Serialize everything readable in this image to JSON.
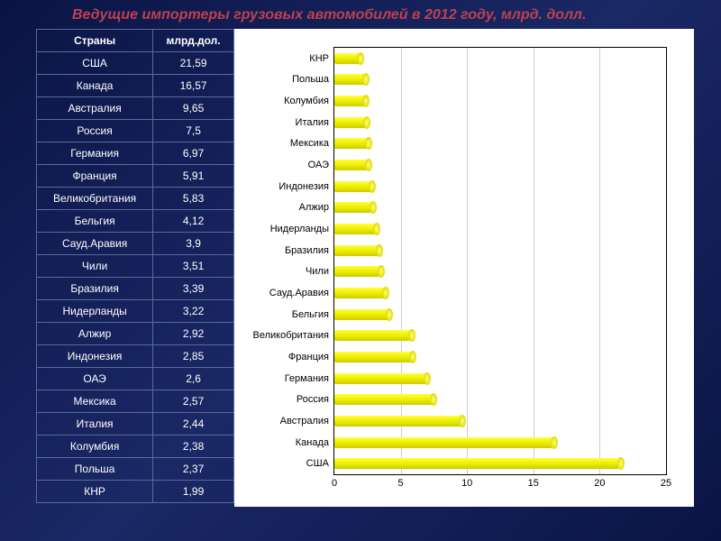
{
  "title": "Ведущие импортеры грузовых автомобилей в 2012 году, млрд. долл.",
  "table": {
    "headers": [
      "Страны",
      "млрд.дол."
    ],
    "rows": [
      [
        "США",
        "21,59"
      ],
      [
        "Канада",
        "16,57"
      ],
      [
        "Австралия",
        "9,65"
      ],
      [
        "Россия",
        "7,5"
      ],
      [
        "Германия",
        "6,97"
      ],
      [
        "Франция",
        "5,91"
      ],
      [
        "Великобритания",
        "5,83"
      ],
      [
        "Бельгия",
        "4,12"
      ],
      [
        "Сауд.Аравия",
        "3,9"
      ],
      [
        "Чили",
        "3,51"
      ],
      [
        "Бразилия",
        "3,39"
      ],
      [
        "Нидерланды",
        "3,22"
      ],
      [
        "Алжир",
        "2,92"
      ],
      [
        "Индонезия",
        "2,85"
      ],
      [
        "ОАЭ",
        "2,6"
      ],
      [
        "Мексика",
        "2,57"
      ],
      [
        "Италия",
        "2,44"
      ],
      [
        "Колумбия",
        "2,38"
      ],
      [
        "Польша",
        "2,37"
      ],
      [
        "КНР",
        "1,99"
      ]
    ]
  },
  "chart": {
    "type": "bar",
    "orientation": "horizontal",
    "xlim": [
      0,
      25
    ],
    "xtick_step": 5,
    "xticks": [
      0,
      5,
      10,
      15,
      20,
      25
    ],
    "bar_color": "#eeee00",
    "grid_color": "#cccccc",
    "background_color": "#ffffff",
    "label_fontsize": 11,
    "categories": [
      "КНР",
      "Польша",
      "Колумбия",
      "Италия",
      "Мексика",
      "ОАЭ",
      "Индонезия",
      "Алжир",
      "Нидерланды",
      "Бразилия",
      "Чили",
      "Сауд.Аравия",
      "Бельгия",
      "Великобритания",
      "Франция",
      "Германия",
      "Россия",
      "Австралия",
      "Канада",
      "США"
    ],
    "values": [
      1.99,
      2.37,
      2.38,
      2.44,
      2.57,
      2.6,
      2.85,
      2.92,
      3.22,
      3.39,
      3.51,
      3.9,
      4.12,
      5.83,
      5.91,
      6.97,
      7.5,
      9.65,
      16.57,
      21.59
    ]
  },
  "style": {
    "title_color": "#c04050",
    "text_color": "#ffffff",
    "table_border": "#5a6a9a",
    "bg_gradient_from": "#0a1445",
    "bg_gradient_to": "#1a2865"
  }
}
